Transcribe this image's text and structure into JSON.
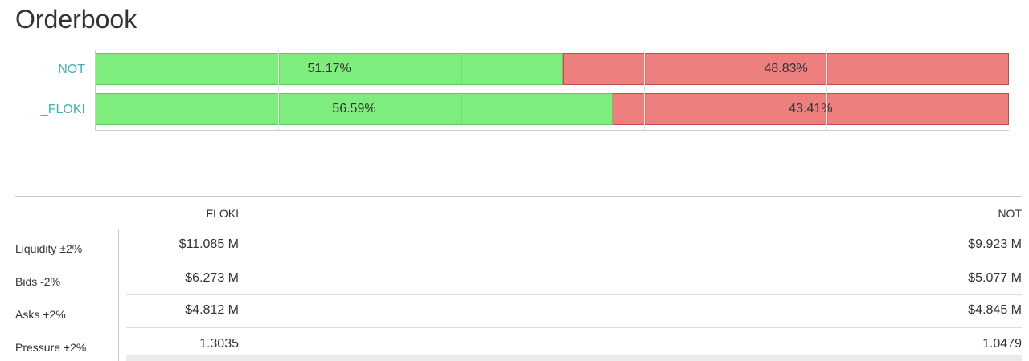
{
  "title": "Orderbook",
  "chart_data": {
    "type": "bar",
    "orientation": "horizontal-stacked-percent",
    "categories": [
      "NOT",
      "_FLOKI"
    ],
    "series": [
      {
        "values": [
          51.17,
          56.59
        ],
        "color": "#7eed7e"
      },
      {
        "values": [
          48.83,
          43.41
        ],
        "color": "#ee7f7f"
      }
    ],
    "labels": [
      [
        "51.17%",
        "48.83%"
      ],
      [
        "56.59%",
        "43.41%"
      ]
    ],
    "xlim": [
      0,
      100
    ]
  },
  "table": {
    "columns": [
      "FLOKI",
      "NOT"
    ],
    "rows": [
      {
        "label": "Liquidity ±2%",
        "floki": "$11.085 M",
        "not": "$9.923 M"
      },
      {
        "label": "Bids -2%",
        "floki": "$6.273 M",
        "not": "$5.077 M"
      },
      {
        "label": "Asks +2%",
        "floki": "$4.812 M",
        "not": "$4.845 M"
      },
      {
        "label": "Pressure +2%",
        "floki": "1.3035",
        "not": "1.0479"
      }
    ]
  }
}
